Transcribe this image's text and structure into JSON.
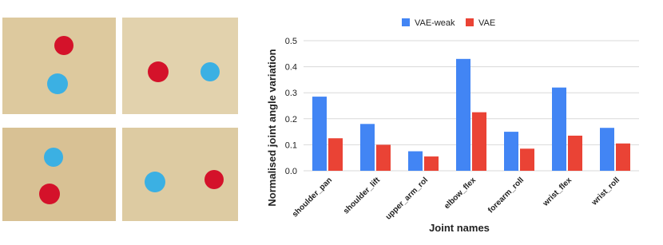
{
  "chart_data": {
    "type": "bar",
    "y_label": "Normalised joint angle variation",
    "x_label": "Joint names",
    "categories": [
      "shoulder_pan",
      "shoulder_lift",
      "upper_arm_rol",
      "elbow_flex",
      "forearm_roll",
      "wrist_flex",
      "wrist_roll"
    ],
    "series": [
      {
        "name": "VAE-weak",
        "color": "#4285f4",
        "values": [
          0.285,
          0.18,
          0.075,
          0.43,
          0.15,
          0.32,
          0.165
        ]
      },
      {
        "name": "VAE",
        "color": "#ea4335",
        "values": [
          0.125,
          0.1,
          0.055,
          0.225,
          0.085,
          0.135,
          0.105
        ]
      }
    ],
    "ylim": [
      0,
      0.5
    ],
    "yticks": [
      {
        "value": 0,
        "label": "0.0"
      },
      0.1,
      0.2,
      0.3,
      0.4,
      0.5
    ],
    "grid": true,
    "legend": "top"
  }
}
